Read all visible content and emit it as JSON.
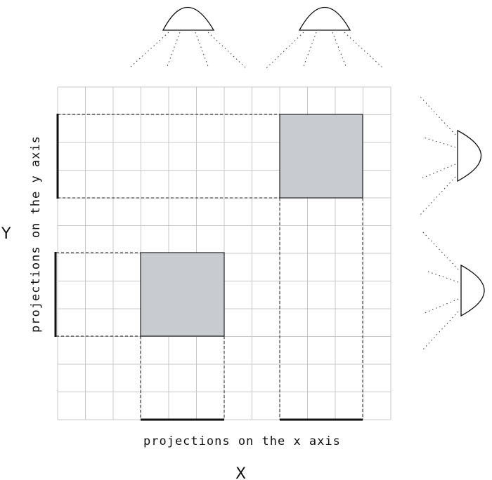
{
  "labels": {
    "x_projection": "projections on the x axis",
    "y_projection": "projections on the y axis",
    "x_axis": "X",
    "y_axis": "Y"
  },
  "colors": {
    "grid": "#c8c8c8",
    "box_fill": "#c8ccd1",
    "stroke": "#111111"
  },
  "icons": {
    "light_source": "lamp-icon"
  }
}
